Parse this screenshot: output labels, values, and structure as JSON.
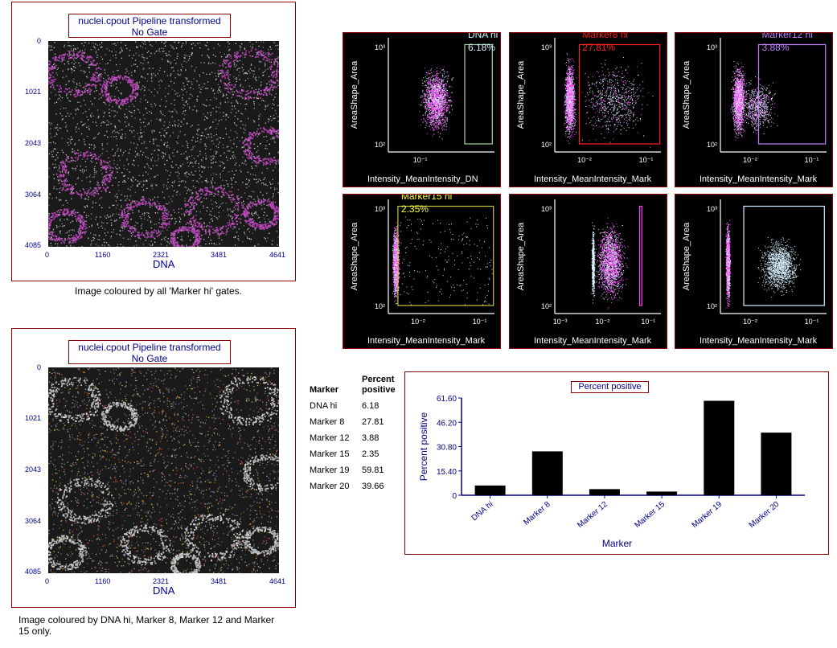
{
  "image1": {
    "title_line1": "nuclei.cpout Pipeline transformed",
    "title_line2": "No Gate",
    "xlabel": "DNA",
    "xticks": [
      "0",
      "1160",
      "2321",
      "3481",
      "4641"
    ],
    "yticks": [
      "0",
      "1021",
      "2043",
      "3064",
      "4085"
    ],
    "caption": "Image coloured by all 'Marker hi' gates."
  },
  "image2": {
    "title_line1": "nuclei.cpout Pipeline transformed",
    "title_line2": "No Gate",
    "xlabel": "DNA",
    "xticks": [
      "0",
      "1160",
      "2321",
      "3481",
      "4641"
    ],
    "yticks": [
      "0",
      "1021",
      "2043",
      "3064",
      "4085"
    ],
    "caption_line1": "Image coloured by DNA hi, Marker 8, Marker 12 and Marker",
    "caption_line2": "15 only."
  },
  "scatter_plots": [
    {
      "ylabel": "AreaShape_Area",
      "xlabel": "Intensity_MeanIntensity_DN",
      "gate_name": "DNA hi",
      "gate_pct": "6.18%",
      "gate_color": "#d9f2ff",
      "gate_line": "#9fd6a0",
      "xticks": [
        "10⁻¹"
      ],
      "yticks": [
        "10³",
        "10²"
      ]
    },
    {
      "ylabel": "AreaShape_Area",
      "xlabel": "Intensity_MeanIntensity_Mark",
      "gate_name": "Marker8 hi",
      "gate_pct": "27.81%",
      "gate_color": "#ff2020",
      "gate_line": "#ff2020",
      "xticks": [
        "10⁻²",
        "10⁻¹"
      ],
      "yticks": [
        "10³",
        "10²"
      ]
    },
    {
      "ylabel": "AreaShape_Area",
      "xlabel": "Intensity_MeanIntensity_Mark",
      "gate_name": "Marker12 hi",
      "gate_pct": "3.88%",
      "gate_color": "#c080ff",
      "gate_line": "#c080ff",
      "xticks": [
        "10⁻²",
        "10⁻¹"
      ],
      "yticks": [
        "10³",
        "10²"
      ]
    },
    {
      "ylabel": "AreaShape_Area",
      "xlabel": "Intensity_MeanIntensity_Mark",
      "gate_name": "Marker15 hi",
      "gate_pct": "2.35%",
      "gate_color": "#ffff30",
      "gate_line": "#c8c840",
      "xticks": [
        "10⁻²",
        "10⁻¹"
      ],
      "yticks": [
        "10³",
        "10²"
      ]
    },
    {
      "ylabel": "AreaShape_Area",
      "xlabel": "Intensity_MeanIntensity_Mark",
      "gate_name": "",
      "gate_pct": "",
      "gate_color": "#ff40ff",
      "gate_line": "#ff40ff",
      "xticks": [
        "10⁻³",
        "10⁻²",
        "10⁻¹"
      ],
      "yticks": [
        "10³",
        "10²"
      ]
    },
    {
      "ylabel": "AreaShape_Area",
      "xlabel": "Intensity_MeanIntensity_Mark",
      "gate_name": "",
      "gate_pct": "",
      "gate_color": "#d0f0ff",
      "gate_line": "#d0f0ff",
      "xticks": [
        "10⁻²",
        "10⁻¹"
      ],
      "yticks": [
        "10³",
        "10²"
      ]
    }
  ],
  "stats_table": {
    "col1_header": "Marker",
    "col2_header_line1": "Percent",
    "col2_header_line2": "positive",
    "rows": [
      {
        "marker": "DNA hi",
        "value": "6.18"
      },
      {
        "marker": "Marker 8",
        "value": "27.81"
      },
      {
        "marker": "Marker 12",
        "value": "3.88"
      },
      {
        "marker": "Marker 15",
        "value": "2.35"
      },
      {
        "marker": "Marker 19",
        "value": "59.81"
      },
      {
        "marker": "Marker 20",
        "value": "39.66"
      }
    ]
  },
  "chart_data": {
    "type": "bar",
    "title": "Percent positive",
    "xlabel": "Marker",
    "ylabel": "Percent positive",
    "categories": [
      "DNA hi",
      "Marker 8",
      "Marker 12",
      "Marker 15",
      "Marker 19",
      "Marker 20"
    ],
    "values": [
      6.18,
      27.81,
      3.88,
      2.35,
      59.81,
      39.66
    ],
    "yticks": [
      "0",
      "15.40",
      "30.80",
      "46.20",
      "61.60"
    ],
    "ylim": [
      0,
      61.6
    ],
    "bar_color": "#000000",
    "axis_color": "#00008b",
    "grid": false,
    "legend": false
  }
}
